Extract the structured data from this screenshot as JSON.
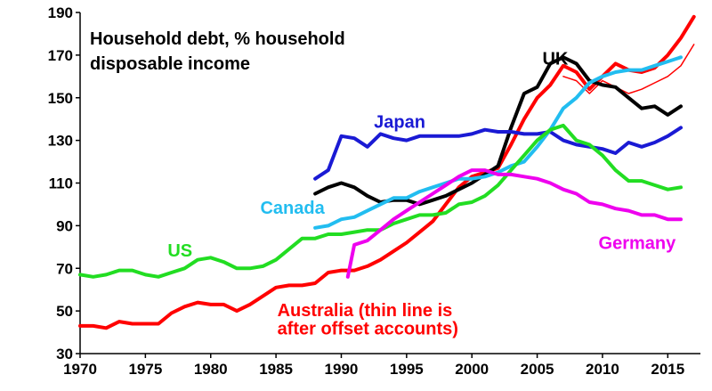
{
  "chart_data": {
    "type": "line",
    "title_lines": [
      "Household debt, % household",
      "disposable income"
    ],
    "xlabel": "",
    "ylabel": "",
    "xlim": [
      1970,
      2017.5
    ],
    "ylim": [
      30,
      190
    ],
    "x_ticks": [
      1970,
      1975,
      1980,
      1985,
      1990,
      1995,
      2000,
      2005,
      2010,
      2015
    ],
    "y_ticks": [
      30,
      50,
      70,
      90,
      110,
      130,
      150,
      170,
      190
    ],
    "grid": false,
    "series": [
      {
        "name": "Australia (thin line is",
        "name_line2": "after offset accounts)",
        "color": "#ff0000",
        "width": 4,
        "x": [
          1970,
          1971,
          1972,
          1973,
          1974,
          1975,
          1976,
          1977,
          1978,
          1979,
          1980,
          1981,
          1982,
          1983,
          1984,
          1985,
          1986,
          1987,
          1988,
          1989,
          1990,
          1991,
          1992,
          1993,
          1994,
          1995,
          1996,
          1997,
          1998,
          1999,
          2000,
          2001,
          2002,
          2003,
          2004,
          2005,
          2006,
          2007,
          2008,
          2009,
          2010,
          2011,
          2012,
          2013,
          2014,
          2015,
          2016,
          2017
        ],
        "y": [
          43,
          43,
          42,
          45,
          44,
          44,
          44,
          49,
          52,
          54,
          53,
          53,
          50,
          53,
          57,
          61,
          62,
          62,
          63,
          68,
          69,
          69,
          71,
          74,
          78,
          82,
          87,
          92,
          100,
          108,
          113,
          115,
          117,
          128,
          140,
          150,
          156,
          165,
          162,
          154,
          160,
          166,
          163,
          162,
          164,
          170,
          178,
          188
        ]
      },
      {
        "name": "",
        "color": "#ff0000",
        "width": 1.5,
        "x": [
          2007,
          2008,
          2009,
          2010,
          2011,
          2012,
          2013,
          2014,
          2015,
          2016,
          2017
        ],
        "y": [
          160,
          158,
          152,
          158,
          155,
          152,
          154,
          157,
          160,
          165,
          175
        ]
      },
      {
        "name": "UK",
        "color": "#000000",
        "width": 4,
        "x": [
          1988,
          1989,
          1990,
          1991,
          1992,
          1993,
          1994,
          1995,
          1996,
          1997,
          1998,
          1999,
          2000,
          2001,
          2002,
          2003,
          2004,
          2005,
          2006,
          2007,
          2008,
          2009,
          2010,
          2011,
          2012,
          2013,
          2014,
          2015,
          2016
        ],
        "y": [
          105,
          108,
          110,
          108,
          104,
          101,
          102,
          102,
          100,
          102,
          104,
          107,
          110,
          114,
          118,
          136,
          152,
          155,
          166,
          169,
          166,
          158,
          156,
          155,
          150,
          145,
          146,
          142,
          146
        ]
      },
      {
        "name": "Japan",
        "color": "#1a1ad4",
        "width": 4,
        "x": [
          1988,
          1989,
          1990,
          1991,
          1992,
          1993,
          1994,
          1995,
          1996,
          1997,
          1998,
          1999,
          2000,
          2001,
          2002,
          2003,
          2004,
          2005,
          2006,
          2007,
          2008,
          2009,
          2010,
          2011,
          2012,
          2013,
          2014,
          2015,
          2016
        ],
        "y": [
          112,
          116,
          132,
          131,
          127,
          133,
          131,
          130,
          132,
          132,
          132,
          132,
          133,
          135,
          134,
          134,
          133,
          133,
          134,
          130,
          128,
          127,
          126,
          124,
          129,
          127,
          129,
          132,
          136
        ]
      },
      {
        "name": "Canada",
        "color": "#22bdf0",
        "width": 4,
        "x": [
          1988,
          1989,
          1990,
          1991,
          1992,
          1993,
          1994,
          1995,
          1996,
          1997,
          1998,
          1999,
          2000,
          2001,
          2002,
          2003,
          2004,
          2005,
          2006,
          2007,
          2008,
          2009,
          2010,
          2011,
          2012,
          2013,
          2014,
          2015,
          2016
        ],
        "y": [
          89,
          90,
          93,
          94,
          97,
          100,
          103,
          103,
          106,
          108,
          110,
          112,
          112,
          113,
          115,
          118,
          120,
          127,
          135,
          145,
          150,
          157,
          160,
          162,
          163,
          163,
          165,
          167,
          169
        ]
      },
      {
        "name": "US",
        "color": "#22dd22",
        "width": 4,
        "x": [
          1970,
          1971,
          1972,
          1973,
          1974,
          1975,
          1976,
          1977,
          1978,
          1979,
          1980,
          1981,
          1982,
          1983,
          1984,
          1985,
          1986,
          1987,
          1988,
          1989,
          1990,
          1991,
          1992,
          1993,
          1994,
          1995,
          1996,
          1997,
          1998,
          1999,
          2000,
          2001,
          2002,
          2003,
          2004,
          2005,
          2006,
          2007,
          2008,
          2009,
          2010,
          2011,
          2012,
          2013,
          2014,
          2015,
          2016
        ],
        "y": [
          67,
          66,
          67,
          69,
          69,
          67,
          66,
          68,
          70,
          74,
          75,
          73,
          70,
          70,
          71,
          74,
          79,
          84,
          84,
          86,
          86,
          87,
          88,
          88,
          91,
          93,
          95,
          95,
          96,
          100,
          101,
          104,
          109,
          116,
          123,
          130,
          135,
          137,
          130,
          128,
          123,
          116,
          111,
          111,
          109,
          107,
          108
        ]
      },
      {
        "name": "Germany",
        "color": "#ee00ee",
        "width": 4,
        "x": [
          1990.5,
          1991,
          1992,
          1993,
          1994,
          1995,
          1996,
          1997,
          1998,
          1999,
          2000,
          2001,
          2002,
          2003,
          2004,
          2005,
          2006,
          2007,
          2008,
          2009,
          2010,
          2011,
          2012,
          2013,
          2014,
          2015,
          2016
        ],
        "y": [
          66,
          81,
          83,
          88,
          93,
          97,
          101,
          105,
          109,
          113,
          116,
          116,
          114,
          114,
          113,
          112,
          110,
          107,
          105,
          101,
          100,
          98,
          97,
          95,
          95,
          93,
          93
        ]
      }
    ],
    "annotations": [
      {
        "text": "UK",
        "color": "#000000",
        "x": 2005.4,
        "y": 165.5
      },
      {
        "text": "Japan",
        "color": "#1a1ad4",
        "x": 1992.5,
        "y": 136
      },
      {
        "text": "Canada",
        "color": "#22bdf0",
        "x": 1983.8,
        "y": 95.5
      },
      {
        "text": "US",
        "color": "#22dd22",
        "x": 1976.7,
        "y": 75.5
      },
      {
        "text": "Germany",
        "color": "#ee00ee",
        "x": 2009.7,
        "y": 79
      },
      {
        "text": "Australia (thin line is",
        "color": "#ff0000",
        "x": 1985.1,
        "y": 47.5
      },
      {
        "text": "after offset accounts)",
        "color": "#ff0000",
        "x": 1985.1,
        "y": 39
      }
    ]
  }
}
